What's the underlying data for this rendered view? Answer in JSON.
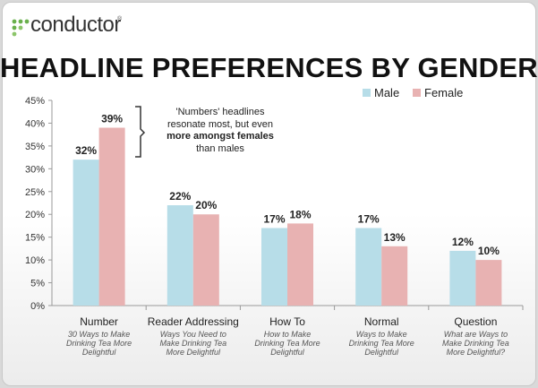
{
  "brand": {
    "name": "conductor",
    "reg_mark": "®"
  },
  "colors": {
    "male": "#b7dde8",
    "female": "#e8b2b2",
    "axis": "#999999",
    "logo_green": "#6ab04c"
  },
  "annotation": {
    "part1": "'Numbers' headlines resonate most, but even ",
    "bold": "more amongst females",
    "part2": " than males"
  },
  "chart_data": {
    "type": "bar",
    "title": "HEADLINE PREFERENCES BY GENDER",
    "ylim": [
      0,
      45
    ],
    "yticks": [
      "0%",
      "5%",
      "10%",
      "15%",
      "20%",
      "25%",
      "30%",
      "35%",
      "40%",
      "45%"
    ],
    "categories": [
      "Number",
      "Reader Addressing",
      "How To",
      "Normal",
      "Question"
    ],
    "category_examples": [
      [
        "30 Ways to Make",
        "Drinking Tea More",
        "Delightful"
      ],
      [
        "Ways You Need to",
        "Make Drinking Tea",
        "More Delightful"
      ],
      [
        "How to Make",
        "Drinking Tea More",
        "Delightful"
      ],
      [
        "Ways to Make",
        "Drinking Tea More",
        "Delightful"
      ],
      [
        "What are Ways to",
        "Make Drinking Tea",
        "More Delightful?"
      ]
    ],
    "series": [
      {
        "name": "Male",
        "values": [
          32,
          22,
          17,
          17,
          12
        ],
        "labels": [
          "32%",
          "22%",
          "17%",
          "17%",
          "12%"
        ]
      },
      {
        "name": "Female",
        "values": [
          39,
          20,
          18,
          13,
          10
        ],
        "labels": [
          "39%",
          "20%",
          "18%",
          "13%",
          "10%"
        ]
      }
    ],
    "legend_position": "top-right",
    "grid": false
  }
}
